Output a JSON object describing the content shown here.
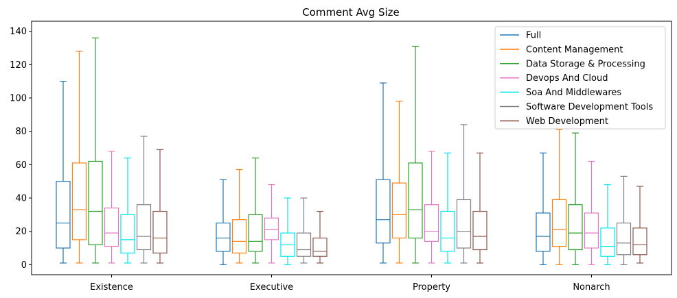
{
  "chart_data": {
    "type": "boxplot",
    "title": "Comment Avg Size",
    "xlabel": "",
    "ylabel": "",
    "ylim": [
      -6,
      146
    ],
    "yticks": [
      0,
      20,
      40,
      60,
      80,
      100,
      120,
      140
    ],
    "categories": [
      "Existence",
      "Executive",
      "Property",
      "Nonarch"
    ],
    "legend_position": "top-right",
    "grid": false,
    "series": [
      {
        "name": "Full",
        "color": "#1f77b4",
        "boxes": [
          {
            "whislo": 1,
            "q1": 10,
            "med": 25,
            "q3": 50,
            "whishi": 110
          },
          {
            "whislo": 0,
            "q1": 8,
            "med": 16,
            "q3": 25,
            "whishi": 51
          },
          {
            "whislo": 1,
            "q1": 13,
            "med": 27,
            "q3": 51,
            "whishi": 109
          },
          {
            "whislo": 0,
            "q1": 8,
            "med": 17,
            "q3": 31,
            "whishi": 67
          }
        ]
      },
      {
        "name": "Content Management",
        "color": "#ff7f0e",
        "boxes": [
          {
            "whislo": 1,
            "q1": 15,
            "med": 33,
            "q3": 61,
            "whishi": 128
          },
          {
            "whislo": 1,
            "q1": 7,
            "med": 14,
            "q3": 27,
            "whishi": 57
          },
          {
            "whislo": 1,
            "q1": 16,
            "med": 30,
            "q3": 49,
            "whishi": 98
          },
          {
            "whislo": 0,
            "q1": 11,
            "med": 21,
            "q3": 39,
            "whishi": 81
          }
        ]
      },
      {
        "name": "Data Storage & Processing",
        "color": "#2ca02c",
        "boxes": [
          {
            "whislo": 1,
            "q1": 12,
            "med": 32,
            "q3": 62,
            "whishi": 136
          },
          {
            "whislo": 1,
            "q1": 8,
            "med": 14,
            "q3": 30,
            "whishi": 64
          },
          {
            "whislo": 1,
            "q1": 16,
            "med": 33,
            "q3": 61,
            "whishi": 131
          },
          {
            "whislo": 0,
            "q1": 9,
            "med": 19,
            "q3": 36,
            "whishi": 79
          }
        ]
      },
      {
        "name": "Devops And Cloud",
        "color": "#e377c2",
        "boxes": [
          {
            "whislo": 1,
            "q1": 11,
            "med": 19,
            "q3": 34,
            "whishi": 68
          },
          {
            "whislo": 1,
            "q1": 15,
            "med": 21,
            "q3": 28,
            "whishi": 48
          },
          {
            "whislo": 1,
            "q1": 14,
            "med": 20,
            "q3": 36,
            "whishi": 68
          },
          {
            "whislo": 0,
            "q1": 10,
            "med": 19,
            "q3": 31,
            "whishi": 62
          }
        ]
      },
      {
        "name": "Soa And Middlewares",
        "color": "#00e5ee",
        "boxes": [
          {
            "whislo": 1,
            "q1": 7,
            "med": 15,
            "q3": 30,
            "whishi": 64
          },
          {
            "whislo": 0,
            "q1": 5,
            "med": 12,
            "q3": 19,
            "whishi": 40
          },
          {
            "whislo": 1,
            "q1": 8,
            "med": 16,
            "q3": 32,
            "whishi": 67
          },
          {
            "whislo": 0,
            "q1": 5,
            "med": 11,
            "q3": 22,
            "whishi": 48
          }
        ]
      },
      {
        "name": "Software Development Tools",
        "color": "#7f7f7f",
        "boxes": [
          {
            "whislo": 1,
            "q1": 9,
            "med": 17,
            "q3": 36,
            "whishi": 77
          },
          {
            "whislo": 1,
            "q1": 5,
            "med": 9,
            "q3": 19,
            "whishi": 40
          },
          {
            "whislo": 1,
            "q1": 10,
            "med": 20,
            "q3": 39,
            "whishi": 84
          },
          {
            "whislo": 0,
            "q1": 6,
            "med": 13,
            "q3": 25,
            "whishi": 53
          }
        ]
      },
      {
        "name": "Web Development",
        "color": "#8c564b",
        "boxes": [
          {
            "whislo": 1,
            "q1": 7,
            "med": 16,
            "q3": 32,
            "whishi": 69
          },
          {
            "whislo": 1,
            "q1": 5,
            "med": 8,
            "q3": 16,
            "whishi": 32
          },
          {
            "whislo": 1,
            "q1": 9,
            "med": 17,
            "q3": 32,
            "whishi": 67
          },
          {
            "whislo": 1,
            "q1": 6,
            "med": 12,
            "q3": 22,
            "whishi": 47
          }
        ]
      }
    ]
  }
}
